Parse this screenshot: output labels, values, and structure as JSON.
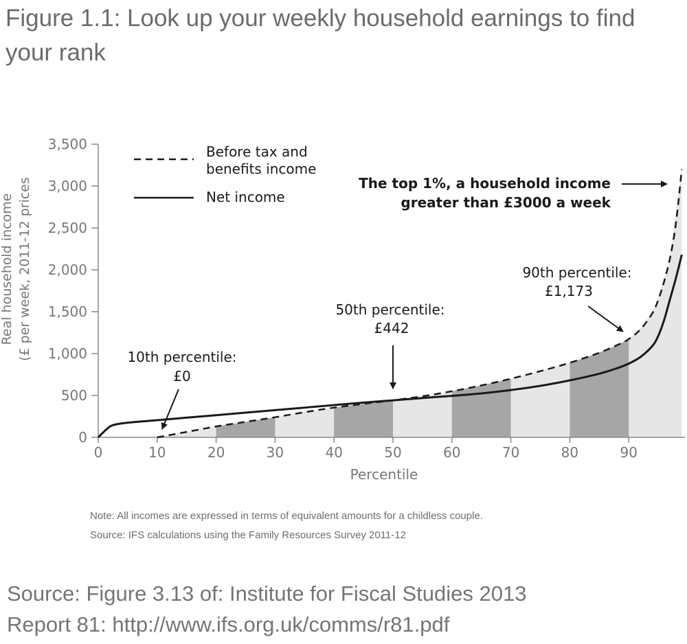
{
  "figure": {
    "title": "Figure 1.1: Look up your weekly household earnings to find your rank"
  },
  "chart_data": {
    "type": "line",
    "xlabel": "Percentile",
    "ylabel_line1": "Real household income",
    "ylabel_line2": "(£ per week, 2011-12 prices",
    "xlim": [
      0,
      99
    ],
    "ylim": [
      0,
      3500
    ],
    "x_ticks": [
      0,
      10,
      20,
      30,
      40,
      50,
      60,
      70,
      80,
      90
    ],
    "x_tick_labels": [
      "0",
      "10",
      "20",
      "30",
      "40",
      "50",
      "60",
      "70",
      "80",
      "90"
    ],
    "y_ticks": [
      0,
      500,
      1000,
      1500,
      2000,
      2500,
      3000,
      3500
    ],
    "y_tick_labels": [
      "0",
      "500",
      "1,000",
      "1,500",
      "2,000",
      "2,500",
      "3,000",
      "3,500"
    ],
    "legend": {
      "position": "top-left",
      "before_line1": "Before tax and",
      "before_line2": "benefits income",
      "net": "Net income"
    },
    "series": [
      {
        "name": "Before tax and benefits income",
        "style": "dashed",
        "x": [
          10,
          15,
          20,
          25,
          30,
          35,
          40,
          45,
          50,
          55,
          60,
          65,
          70,
          75,
          80,
          85,
          88,
          90,
          92,
          94,
          95,
          96,
          97,
          98,
          99
        ],
        "y": [
          0,
          65,
          130,
          185,
          240,
          300,
          355,
          400,
          442,
          490,
          550,
          620,
          700,
          790,
          890,
          1010,
          1100,
          1173,
          1290,
          1480,
          1640,
          1860,
          2140,
          2550,
          3200
        ]
      },
      {
        "name": "Net income",
        "style": "solid",
        "x": [
          0,
          1,
          2,
          3,
          5,
          10,
          15,
          20,
          25,
          30,
          35,
          40,
          45,
          50,
          55,
          60,
          65,
          70,
          75,
          80,
          85,
          88,
          90,
          92,
          94,
          95,
          96,
          97,
          98,
          99
        ],
        "y": [
          0,
          70,
          130,
          155,
          175,
          205,
          235,
          265,
          295,
          325,
          355,
          385,
          415,
          442,
          470,
          495,
          525,
          565,
          615,
          680,
          760,
          825,
          880,
          960,
          1090,
          1210,
          1400,
          1650,
          1900,
          2180
        ]
      }
    ],
    "shading": {
      "light": [
        [
          10,
          99
        ]
      ],
      "dark": [
        [
          20,
          30
        ],
        [
          40,
          50
        ],
        [
          60,
          70
        ],
        [
          80,
          90
        ]
      ]
    },
    "annotations": {
      "p10_line1": "10th percentile:",
      "p10_line2": "£0",
      "p50_line1": "50th percentile:",
      "p50_line2": "£442",
      "p90_line1": "90th percentile:",
      "p90_line2": "£1,173",
      "top1_line1": "The top 1%, a household income",
      "top1_line2": "greater than £3000 a week"
    }
  },
  "notes": {
    "note": "Note:  All incomes are expressed in terms of equivalent amounts for a childless couple.",
    "source": "Source:  IFS calculations using the Family Resources Survey 2011-12"
  },
  "source_caption": {
    "line1": "Source: Figure 3.13 of: Institute for Fiscal Studies 2013",
    "line2": "Report 81:  http://www.ifs.org.uk/comms/r81.pdf"
  },
  "colors": {
    "light_shade": "#e6e6e6",
    "dark_shade": "#a6a6a6",
    "line": "#1a1a1a",
    "axis_text": "#777777"
  }
}
